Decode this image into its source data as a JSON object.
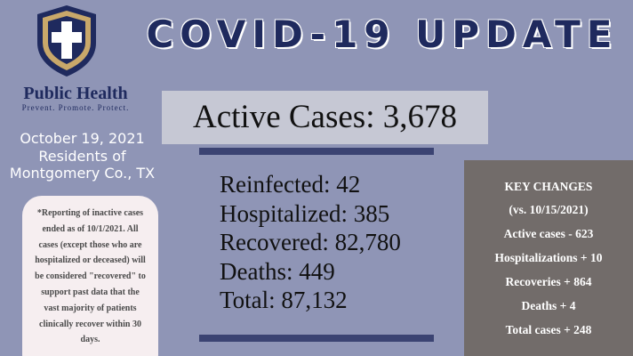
{
  "header": {
    "title": "COVID-19 UPDATE",
    "org": "Public Health",
    "tagline": "Prevent. Promote. Protect."
  },
  "date_block": [
    "October 19, 2021",
    "Residents of",
    "Montgomery Co., TX"
  ],
  "active_cases": "Active Cases: 3,678",
  "stats": [
    "Reinfected: 42",
    "Hospitalized: 385",
    "Recovered: 82,780",
    "Deaths: 449",
    "Total: 87,132"
  ],
  "note": [
    "*Reporting of inactive cases",
    "ended as of 10/1/2021. All",
    "cases (except those who are",
    "hospitalized or deceased) will",
    "be considered \"recovered\" to",
    "support past data that the",
    "vast majority of patients",
    "clinically recover within 30",
    "days."
  ],
  "key_changes": {
    "title": "KEY CHANGES",
    "subtitle": "(vs. 10/15/2021)",
    "items": [
      "Active cases - 623",
      "Hospitalizations + 10",
      "Recoveries + 864",
      "Deaths + 4",
      "Total cases + 248"
    ]
  }
}
